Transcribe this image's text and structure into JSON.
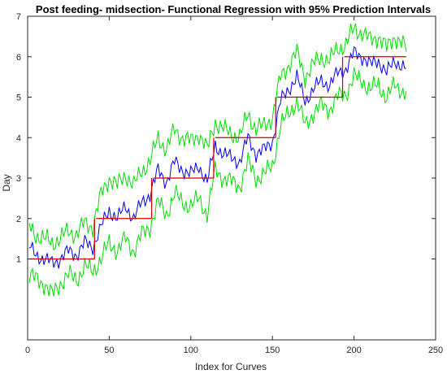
{
  "chart_data": {
    "type": "line",
    "title": "Post feeding- midsection- Functional Regression with 95% Prediction Intervals",
    "xlabel": "Index for Curves",
    "ylabel": "Day",
    "xlim": [
      0,
      250
    ],
    "ylim": [
      -1,
      7
    ],
    "xticks": [
      0,
      50,
      100,
      150,
      200,
      250
    ],
    "yticks": [
      1,
      2,
      3,
      4,
      5,
      6,
      7
    ],
    "grid": false,
    "legend": "none",
    "n_curves": 232,
    "series": [
      {
        "role": "true-day-step",
        "color": "#cc0000",
        "segments": [
          {
            "x": [
              1,
              41
            ],
            "y": 1
          },
          {
            "x": [
              42,
              76
            ],
            "y": 2
          },
          {
            "x": [
              77,
              114
            ],
            "y": 3
          },
          {
            "x": [
              115,
              152
            ],
            "y": 4
          },
          {
            "x": [
              153,
              193
            ],
            "y": 5
          },
          {
            "x": [
              194,
              232
            ],
            "y": 6
          }
        ]
      },
      {
        "role": "prediction-mean",
        "color": "#0000ff",
        "x": [
          1,
          5,
          10,
          15,
          20,
          25,
          30,
          35,
          40,
          45,
          50,
          55,
          60,
          65,
          70,
          75,
          80,
          85,
          90,
          95,
          100,
          105,
          110,
          115,
          120,
          125,
          130,
          135,
          140,
          145,
          150,
          155,
          160,
          165,
          170,
          175,
          180,
          185,
          190,
          195,
          200,
          205,
          210,
          215,
          220,
          225,
          232
        ],
        "y": [
          1.3,
          1.1,
          1.0,
          0.9,
          1.0,
          1.2,
          1.1,
          1.4,
          1.3,
          1.8,
          2.2,
          2.0,
          2.3,
          2.0,
          2.4,
          2.6,
          3.2,
          2.9,
          3.4,
          3.2,
          3.1,
          3.3,
          2.9,
          3.8,
          3.6,
          3.5,
          3.4,
          4.0,
          3.6,
          3.7,
          3.9,
          4.9,
          5.2,
          5.5,
          4.9,
          5.2,
          5.4,
          5.3,
          5.6,
          5.7,
          6.1,
          6.0,
          5.8,
          5.9,
          5.6,
          5.9,
          5.7
        ]
      },
      {
        "role": "prediction-interval-upper",
        "color": "#00e000",
        "x": [
          1,
          5,
          10,
          15,
          20,
          25,
          30,
          35,
          40,
          45,
          50,
          55,
          60,
          65,
          70,
          75,
          80,
          85,
          90,
          95,
          100,
          105,
          110,
          115,
          120,
          125,
          130,
          135,
          140,
          145,
          150,
          155,
          160,
          165,
          170,
          175,
          180,
          185,
          190,
          195,
          200,
          205,
          210,
          215,
          220,
          225,
          232
        ],
        "y": [
          1.8,
          1.6,
          1.5,
          1.4,
          1.5,
          1.7,
          1.6,
          1.9,
          1.8,
          2.6,
          3.0,
          2.8,
          3.1,
          2.8,
          3.2,
          3.4,
          4.0,
          3.7,
          4.2,
          4.0,
          3.9,
          4.1,
          3.7,
          4.4,
          4.2,
          4.1,
          4.0,
          4.6,
          4.2,
          4.3,
          4.5,
          5.5,
          5.8,
          6.1,
          5.5,
          5.8,
          6.0,
          5.9,
          6.2,
          6.3,
          6.7,
          6.6,
          6.4,
          6.5,
          6.2,
          6.5,
          6.2
        ]
      },
      {
        "role": "prediction-interval-lower",
        "color": "#00e000",
        "x": [
          1,
          5,
          10,
          15,
          20,
          25,
          30,
          35,
          40,
          45,
          50,
          55,
          60,
          65,
          70,
          75,
          80,
          85,
          90,
          95,
          100,
          105,
          110,
          115,
          120,
          125,
          130,
          135,
          140,
          145,
          150,
          155,
          160,
          165,
          170,
          175,
          180,
          185,
          190,
          195,
          200,
          205,
          210,
          215,
          220,
          225,
          232
        ],
        "y": [
          0.6,
          0.5,
          0.4,
          0.1,
          0.4,
          0.6,
          0.5,
          0.8,
          0.7,
          1.0,
          1.4,
          1.2,
          1.5,
          1.2,
          1.6,
          1.8,
          2.4,
          2.1,
          2.6,
          2.4,
          2.3,
          2.5,
          2.1,
          3.2,
          3.0,
          2.9,
          2.8,
          3.4,
          3.0,
          3.1,
          3.3,
          4.3,
          4.6,
          4.9,
          4.3,
          4.6,
          4.8,
          4.7,
          5.0,
          5.1,
          5.5,
          5.4,
          5.2,
          5.3,
          5.0,
          5.3,
          5.1
        ]
      }
    ]
  }
}
